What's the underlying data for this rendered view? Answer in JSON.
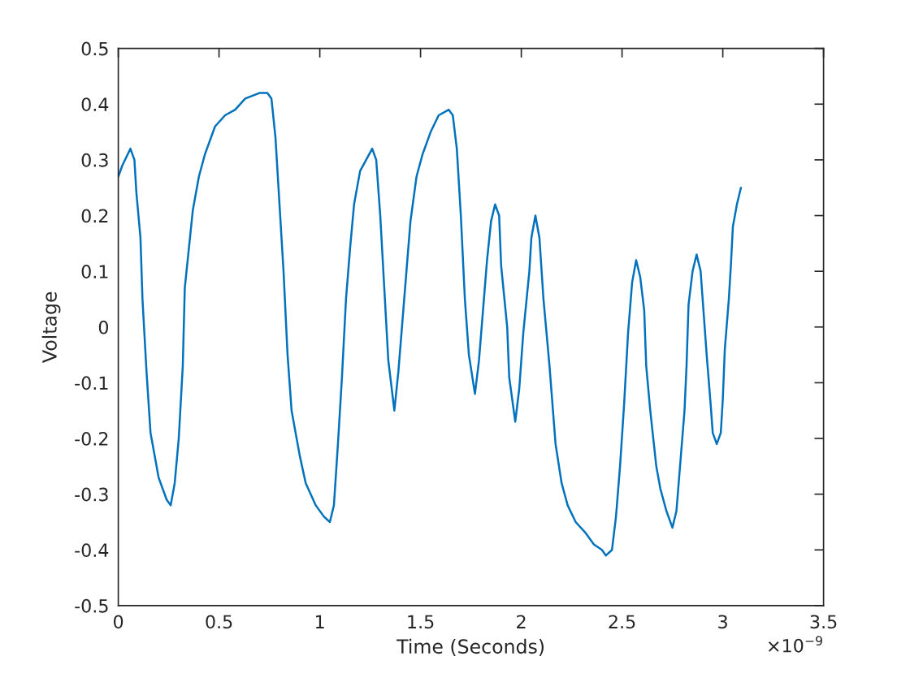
{
  "chart_data": {
    "type": "line",
    "xlabel": "Time (Seconds)",
    "ylabel": "Voltage",
    "annotations": [
      "×10$^{−9}$"
    ],
    "xlim": [
      0,
      3.5
    ],
    "xticks": [
      0,
      0.5,
      1,
      1.5,
      2,
      2.5,
      3,
      3.5
    ],
    "ylim": [
      -0.5,
      0.5
    ],
    "yticks": [
      -0.5,
      -0.4,
      -0.3,
      -0.2,
      -0.1,
      0,
      0.1,
      0.2,
      0.3,
      0.4,
      0.5
    ],
    "line_style": "solid",
    "series": [
      {
        "color": "#0072bd",
        "x": [
          0.0,
          0.02,
          0.06,
          0.08,
          0.09,
          0.11,
          0.12,
          0.14,
          0.16,
          0.2,
          0.24,
          0.26,
          0.28,
          0.3,
          0.32,
          0.33,
          0.35,
          0.37,
          0.4,
          0.43,
          0.48,
          0.53,
          0.58,
          0.63,
          0.7,
          0.74,
          0.76,
          0.78,
          0.8,
          0.82,
          0.84,
          0.86,
          0.9,
          0.93,
          0.98,
          1.02,
          1.05,
          1.07,
          1.09,
          1.11,
          1.13,
          1.15,
          1.17,
          1.2,
          1.23,
          1.26,
          1.28,
          1.3,
          1.32,
          1.34,
          1.37,
          1.39,
          1.41,
          1.43,
          1.45,
          1.48,
          1.51,
          1.55,
          1.59,
          1.64,
          1.66,
          1.68,
          1.7,
          1.72,
          1.74,
          1.77,
          1.79,
          1.81,
          1.83,
          1.85,
          1.87,
          1.89,
          1.9,
          1.93,
          1.94,
          1.97,
          1.99,
          2.01,
          2.04,
          2.05,
          2.07,
          2.09,
          2.11,
          2.14,
          2.17,
          2.2,
          2.23,
          2.27,
          2.32,
          2.36,
          2.4,
          2.42,
          2.45,
          2.47,
          2.49,
          2.51,
          2.53,
          2.55,
          2.57,
          2.59,
          2.61,
          2.62,
          2.64,
          2.67,
          2.69,
          2.72,
          2.75,
          2.77,
          2.79,
          2.81,
          2.82,
          2.83,
          2.85,
          2.87,
          2.89,
          2.9,
          2.92,
          2.94,
          2.95,
          2.97,
          2.99,
          3.0,
          3.01,
          3.03,
          3.04,
          3.05,
          3.07,
          3.09
        ],
        "values": [
          0.27,
          0.29,
          0.32,
          0.3,
          0.24,
          0.16,
          0.05,
          -0.08,
          -0.19,
          -0.27,
          -0.31,
          -0.32,
          -0.28,
          -0.2,
          -0.07,
          0.07,
          0.14,
          0.21,
          0.27,
          0.31,
          0.36,
          0.38,
          0.39,
          0.41,
          0.42,
          0.42,
          0.41,
          0.34,
          0.22,
          0.1,
          -0.05,
          -0.15,
          -0.23,
          -0.28,
          -0.32,
          -0.34,
          -0.35,
          -0.32,
          -0.21,
          -0.09,
          0.05,
          0.14,
          0.22,
          0.28,
          0.3,
          0.32,
          0.3,
          0.2,
          0.07,
          -0.06,
          -0.15,
          -0.08,
          0.01,
          0.1,
          0.19,
          0.27,
          0.31,
          0.35,
          0.38,
          0.39,
          0.38,
          0.32,
          0.2,
          0.05,
          -0.05,
          -0.12,
          -0.06,
          0.03,
          0.12,
          0.19,
          0.22,
          0.2,
          0.11,
          0.0,
          -0.09,
          -0.17,
          -0.11,
          -0.01,
          0.1,
          0.16,
          0.2,
          0.16,
          0.05,
          -0.07,
          -0.21,
          -0.28,
          -0.32,
          -0.35,
          -0.37,
          -0.39,
          -0.4,
          -0.41,
          -0.4,
          -0.34,
          -0.25,
          -0.14,
          -0.01,
          0.08,
          0.12,
          0.09,
          0.03,
          -0.07,
          -0.15,
          -0.25,
          -0.29,
          -0.33,
          -0.36,
          -0.33,
          -0.24,
          -0.15,
          -0.07,
          0.04,
          0.1,
          0.13,
          0.1,
          0.05,
          -0.05,
          -0.14,
          -0.19,
          -0.21,
          -0.19,
          -0.13,
          -0.04,
          0.05,
          0.11,
          0.18,
          0.22,
          0.25
        ]
      }
    ]
  }
}
